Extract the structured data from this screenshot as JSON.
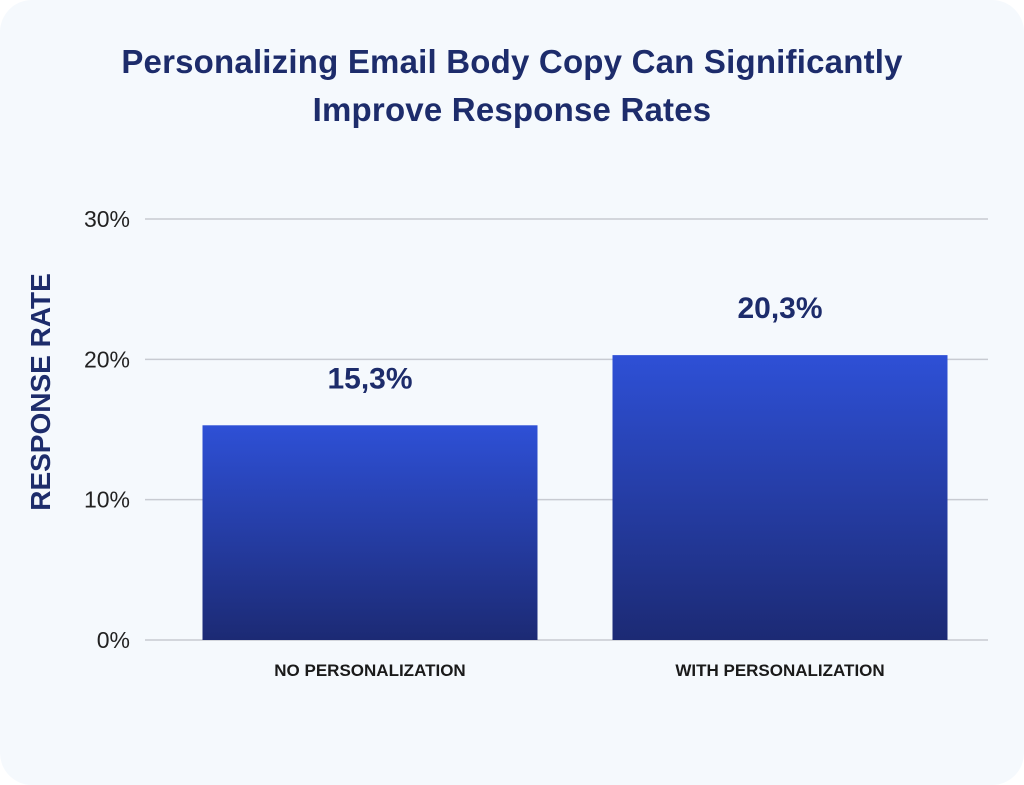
{
  "chart_data": {
    "type": "bar",
    "title_lines": [
      "Personalizing Email Body Copy Can Significantly",
      "Improve Response Rates"
    ],
    "title": "Personalizing Email Body Copy Can Significantly Improve Response Rates",
    "xlabel": "",
    "ylabel": "RESPONSE RATE",
    "categories": [
      "NO PERSONALIZATION",
      "WITH PERSONALIZATION"
    ],
    "values": [
      15.3,
      20.3
    ],
    "value_labels": [
      "15,3%",
      "20,3%"
    ],
    "ylim": [
      0,
      30
    ],
    "yticks": [
      0,
      10,
      20,
      30
    ],
    "ytick_labels": [
      "0%",
      "10%",
      "20%",
      "30%"
    ],
    "grid": true,
    "legend": "none"
  },
  "colors": {
    "background": "#f5f9fd",
    "title": "#1d2c6b",
    "bar_top": "#2e50d6",
    "bar_bottom": "#1c2a74",
    "grid": "#c8cbd2"
  }
}
